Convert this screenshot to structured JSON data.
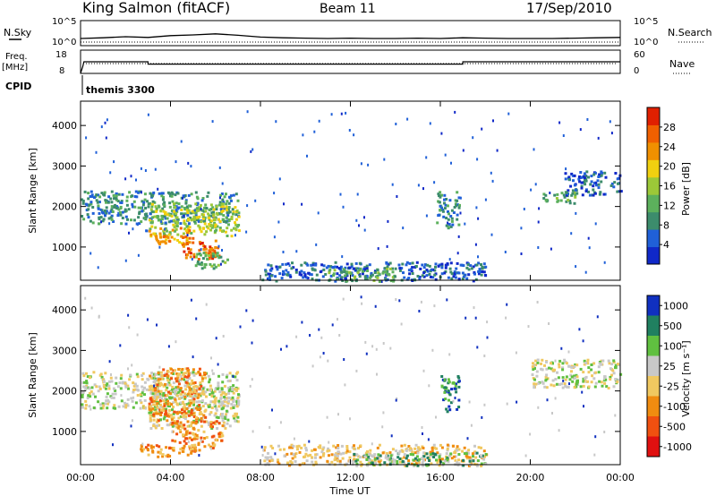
{
  "header": {
    "station": "King Salmon (fitACF)",
    "beam": "Beam 11",
    "date": "17/Sep/2010"
  },
  "sky_panel": {
    "left_label": "N.Sky",
    "left_ticks": [
      "10^5",
      "10^0"
    ],
    "right_label": "N.Search",
    "right_ticks": [
      "10^5",
      "10^0"
    ]
  },
  "freq_panel": {
    "left_label": "Freq.",
    "left_unit": "[MHz]",
    "left_ticks": [
      "18",
      "8"
    ],
    "right_label": "Nave",
    "right_ticks": [
      "60",
      "0"
    ]
  },
  "cpid": {
    "label": "CPID",
    "program": "themis 3300"
  },
  "x_axis": {
    "label": "Time UT",
    "ticks": [
      "00:00",
      "04:00",
      "08:00",
      "12:00",
      "16:00",
      "20:00",
      "00:00"
    ]
  },
  "power_panel": {
    "ylabel": "Slant Range [km]",
    "yticks": [
      "1000",
      "2000",
      "3000",
      "4000"
    ],
    "colorbar_label": "Power [dB]",
    "colorbar_ticks": [
      "4",
      "8",
      "12",
      "16",
      "20",
      "24",
      "28"
    ]
  },
  "velocity_panel": {
    "ylabel": "Slant Range [km]",
    "yticks": [
      "1000",
      "2000",
      "3000",
      "4000"
    ],
    "colorbar_label": "Velocity [m s⁻¹]",
    "colorbar_ticks": [
      "1000",
      "500",
      "100",
      "25",
      "-25",
      "-100",
      "-500",
      "-1000"
    ]
  },
  "colors": {
    "power_scale": [
      "#1028c8",
      "#2060d8",
      "#3c8c6c",
      "#5cb05c",
      "#9cc838",
      "#f0d010",
      "#f09000",
      "#f06000",
      "#e02000"
    ],
    "velocity_scale": [
      "#1030c0",
      "#208060",
      "#60c040",
      "#c8c8c8",
      "#f0c860",
      "#f08c10",
      "#f05010",
      "#e01010"
    ]
  },
  "chart_data": [
    {
      "type": "line",
      "title": "N.Sky / N.Search",
      "x": [
        0,
        1,
        2,
        3,
        4,
        5,
        6,
        7,
        8,
        9,
        10,
        11,
        12,
        13,
        14,
        15,
        16,
        17,
        18,
        19,
        20,
        21,
        22,
        23,
        24
      ],
      "series": [
        {
          "values": [
            1,
            1.2,
            1.5,
            1.3,
            1.8,
            2.0,
            2.3,
            1.9,
            1.4,
            1.2,
            1.1,
            1.0,
            1.1,
            1.0,
            1.0,
            1.1,
            1.0,
            1.2,
            1.1,
            1.0,
            1.0,
            1.0,
            1.1,
            1.2,
            1.3
          ]
        }
      ],
      "ylim": [
        0,
        5
      ]
    },
    {
      "type": "line",
      "title": "Freq. / Nave",
      "x": [
        0,
        0.1,
        0.15,
        3.0,
        3.0,
        17.0,
        17.0,
        24
      ],
      "series": [
        {
          "values": [
            8,
            11,
            13,
            13,
            12,
            12,
            13,
            13
          ]
        }
      ],
      "ylim": [
        8,
        18
      ]
    },
    {
      "type": "heatmap",
      "title": "Power [dB]",
      "xlim": [
        0,
        24
      ],
      "ylim": [
        180,
        4600
      ],
      "regions": [
        {
          "t0": 0.0,
          "t1": 7.0,
          "r0": 1600,
          "r1": 2400,
          "level": 2
        },
        {
          "t0": 3.0,
          "t1": 7.0,
          "r0": 1300,
          "r1": 2100,
          "level": 4
        },
        {
          "t0": 3.0,
          "t1": 5.0,
          "r0": 1100,
          "r1": 1500,
          "level": 6
        },
        {
          "t0": 4.5,
          "t1": 6.2,
          "r0": 700,
          "r1": 1200,
          "level": 7
        },
        {
          "t0": 5.0,
          "t1": 6.5,
          "r0": 500,
          "r1": 900,
          "level": 3
        },
        {
          "t0": 8.0,
          "t1": 18.0,
          "r0": 180,
          "r1": 650,
          "level": 1
        },
        {
          "t0": 11.0,
          "t1": 14.0,
          "r0": 180,
          "r1": 500,
          "level": 3
        },
        {
          "t0": 15.8,
          "t1": 16.8,
          "r0": 1500,
          "r1": 2400,
          "level": 2
        },
        {
          "t0": 20.5,
          "t1": 22.0,
          "r0": 2100,
          "r1": 2400,
          "level": 3
        },
        {
          "t0": 21.5,
          "t1": 24.0,
          "r0": 2300,
          "r1": 2900,
          "level": 1
        }
      ]
    },
    {
      "type": "heatmap",
      "title": "Velocity [m s⁻¹]",
      "xlim": [
        0,
        24
      ],
      "ylim": [
        180,
        4600
      ],
      "regions": [
        {
          "t0": 0.0,
          "t1": 7.0,
          "r0": 1600,
          "r1": 2500,
          "level": 3
        },
        {
          "t0": 3.0,
          "t1": 7.0,
          "r0": 1100,
          "r1": 2100,
          "level": 3
        },
        {
          "t0": 3.0,
          "t1": 5.5,
          "r0": 1300,
          "r1": 2600,
          "level": 5
        },
        {
          "t0": 4.0,
          "t1": 6.3,
          "r0": 600,
          "r1": 1300,
          "level": 5
        },
        {
          "t0": 2.5,
          "t1": 5.5,
          "r0": 400,
          "r1": 700,
          "level": 5
        },
        {
          "t0": 8.0,
          "t1": 18.0,
          "r0": 180,
          "r1": 700,
          "level": 4
        },
        {
          "t0": 12.0,
          "t1": 18.0,
          "r0": 180,
          "r1": 500,
          "level": 2
        },
        {
          "t0": 16.0,
          "t1": 16.8,
          "r0": 1500,
          "r1": 2400,
          "level": 1
        },
        {
          "t0": 20.0,
          "t1": 24.0,
          "r0": 2100,
          "r1": 2800,
          "level": 3
        }
      ]
    }
  ]
}
